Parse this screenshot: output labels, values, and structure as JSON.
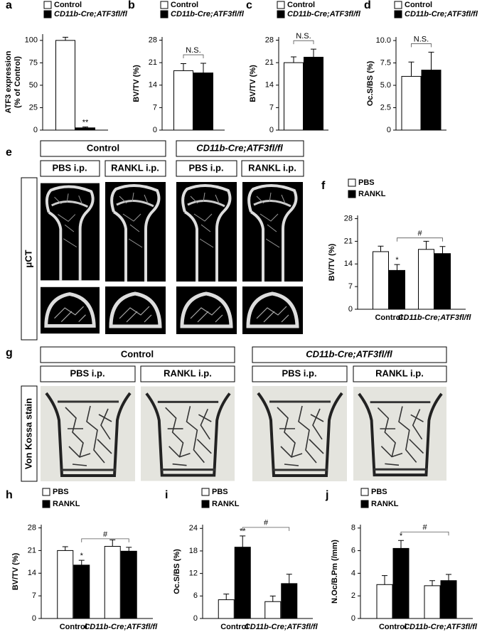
{
  "chart_data": [
    {
      "type": "bar",
      "panel": "a",
      "ylabel": [
        "ATF3 expression",
        "(% of Control)"
      ],
      "categories": [
        null
      ],
      "series": [
        {
          "name": "Control",
          "color": "#ffffff",
          "values": [
            100
          ],
          "errors": [
            3.5
          ]
        },
        {
          "name": "CD11b-Cre;ATF3fl/fl",
          "color": "#000000",
          "values": [
            2.5
          ],
          "errors": [
            1
          ],
          "annotations": [
            "**"
          ]
        }
      ],
      "ylim": [
        0,
        107
      ],
      "yticks": [
        0,
        25,
        50,
        75,
        100
      ]
    },
    {
      "type": "bar",
      "panel": "b",
      "ylabel": "BV/TV (%)",
      "categories": [
        null
      ],
      "series": [
        {
          "name": "Control",
          "color": "#ffffff",
          "values": [
            18.5
          ],
          "errors": [
            2.2
          ]
        },
        {
          "name": "CD11b-Cre;ATF3fl/fl",
          "color": "#000000",
          "values": [
            17.8
          ],
          "errors": [
            3
          ]
        }
      ],
      "ylim": [
        0,
        29
      ],
      "yticks": [
        0,
        7,
        14,
        21,
        28
      ],
      "bracket": "N.S."
    },
    {
      "type": "bar",
      "panel": "c",
      "ylabel": "BV/TV (%)",
      "categories": [
        null
      ],
      "series": [
        {
          "name": "Control",
          "color": "#ffffff",
          "values": [
            21
          ],
          "errors": [
            1.8
          ]
        },
        {
          "name": "CD11b-Cre;ATF3fl/fl",
          "color": "#000000",
          "values": [
            22.7
          ],
          "errors": [
            2.5
          ]
        }
      ],
      "ylim": [
        0,
        29
      ],
      "yticks": [
        0,
        7,
        14,
        21,
        28
      ],
      "bracket": "N.S."
    },
    {
      "type": "bar",
      "panel": "d",
      "ylabel": "Oc.S/BS (%)",
      "categories": [
        null
      ],
      "series": [
        {
          "name": "Control",
          "color": "#ffffff",
          "values": [
            6.0
          ],
          "errors": [
            1.6
          ]
        },
        {
          "name": "CD11b-Cre;ATF3fl/fl",
          "color": "#000000",
          "values": [
            6.7
          ],
          "errors": [
            2.0
          ]
        }
      ],
      "ylim": [
        0,
        10.4
      ],
      "yticks": [
        0,
        2.5,
        {
          "value": 5,
          "label": "5.0"
        },
        7.5,
        {
          "value": 10,
          "label": "10.0"
        }
      ],
      "bracket": "N.S."
    },
    {
      "type": "bar",
      "panel": "f",
      "ylabel": "BV/TV (%)",
      "categories": [
        "Control",
        "CD11b-Cre;ATF3fl/fl"
      ],
      "series": [
        {
          "name": "PBS",
          "color": "#ffffff",
          "values": [
            17.8,
            18.5
          ],
          "errors": [
            1.7,
            2.5
          ]
        },
        {
          "name": "RANKL",
          "color": "#000000",
          "values": [
            12,
            17.2
          ],
          "errors": [
            1.8,
            2.2
          ],
          "annotations": [
            "*",
            null
          ]
        }
      ],
      "ylim": [
        0,
        29
      ],
      "yticks": [
        0,
        7,
        14,
        21,
        28
      ],
      "bracket": "#"
    },
    {
      "type": "bar",
      "panel": "h",
      "ylabel": "BV/TV (%)",
      "categories": [
        "Control",
        "CD11b-Cre;ATF3fl/fl"
      ],
      "series": [
        {
          "name": "PBS",
          "color": "#ffffff",
          "values": [
            21,
            22.3
          ],
          "errors": [
            1.2,
            2
          ]
        },
        {
          "name": "RANKL",
          "color": "#000000",
          "values": [
            16.5,
            20.8
          ],
          "errors": [
            1.5,
            1.2
          ],
          "annotations": [
            "*",
            null
          ]
        }
      ],
      "ylim": [
        0,
        29
      ],
      "yticks": [
        0,
        7,
        14,
        21,
        28
      ],
      "bracket": "#"
    },
    {
      "type": "bar",
      "panel": "i",
      "ylabel": "Oc.S/BS (%)",
      "categories": [
        "Control",
        "CD11b-Cre;ATF3fl/fl"
      ],
      "series": [
        {
          "name": "PBS",
          "color": "#ffffff",
          "values": [
            5,
            4.5
          ],
          "errors": [
            1.5,
            1.5
          ]
        },
        {
          "name": "RANKL",
          "color": "#000000",
          "values": [
            19,
            9.3
          ],
          "errors": [
            3,
            2.5
          ],
          "annotations": [
            "**",
            null
          ]
        }
      ],
      "ylim": [
        0,
        25
      ],
      "yticks": [
        0,
        6,
        12,
        18,
        24
      ],
      "bracket": "#"
    },
    {
      "type": "bar",
      "panel": "j",
      "ylabel": "N.Oc/B.Pm (/mm)",
      "categories": [
        "Control",
        "CD11b-Cre;ATF3fl/fl"
      ],
      "series": [
        {
          "name": "PBS",
          "color": "#ffffff",
          "values": [
            3,
            2.9
          ],
          "errors": [
            0.8,
            0.45
          ]
        },
        {
          "name": "RANKL",
          "color": "#000000",
          "values": [
            6.2,
            3.35
          ],
          "errors": [
            0.7,
            0.55
          ],
          "annotations": [
            "*",
            null
          ]
        }
      ],
      "ylim": [
        0,
        8.3
      ],
      "yticks": [
        0,
        2,
        4,
        6,
        8
      ],
      "bracket": "#"
    }
  ],
  "panel_e": {
    "letter": "e",
    "side_label": "μCT",
    "groups": [
      {
        "title": "Control",
        "columns": [
          "PBS i.p.",
          "RANKL i.p."
        ]
      },
      {
        "title": "CD11b-Cre;ATF3fl/fl",
        "columns": [
          "PBS i.p.",
          "RANKL i.p."
        ]
      }
    ]
  },
  "panel_g": {
    "letter": "g",
    "side_label": "Von Kossa stain",
    "groups": [
      {
        "title": "Control",
        "columns": [
          "PBS i.p.",
          "RANKL i.p."
        ]
      },
      {
        "title": "CD11b-Cre;ATF3fl/fl",
        "columns": [
          "PBS i.p.",
          "RANKL i.p."
        ]
      }
    ]
  }
}
